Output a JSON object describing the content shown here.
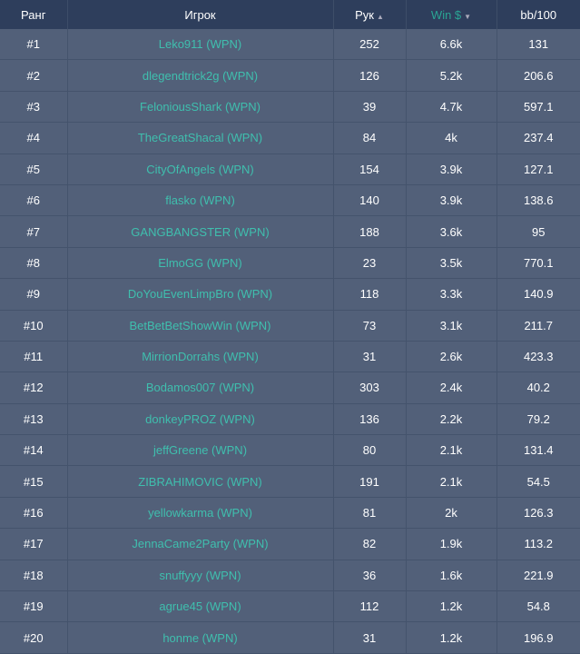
{
  "headers": {
    "rank": "Ранг",
    "player": "Игрок",
    "hands": "Рук",
    "win": "Win $",
    "bb": "bb/100"
  },
  "sort_icons": {
    "hands": "▲",
    "win": "▼"
  },
  "colors": {
    "header_bg": "#2e3e5c",
    "row_bg": "#526079",
    "player_link": "#3fbfae",
    "sorted_header": "#2aa594"
  },
  "rows": [
    {
      "rank": "#1",
      "player": "Leko911 (WPN)",
      "hands": "252",
      "win": "6.6k",
      "bb": "131"
    },
    {
      "rank": "#2",
      "player": "dlegendtrick2g (WPN)",
      "hands": "126",
      "win": "5.2k",
      "bb": "206.6"
    },
    {
      "rank": "#3",
      "player": "FeloniousShark (WPN)",
      "hands": "39",
      "win": "4.7k",
      "bb": "597.1"
    },
    {
      "rank": "#4",
      "player": "TheGreatShacal (WPN)",
      "hands": "84",
      "win": "4k",
      "bb": "237.4"
    },
    {
      "rank": "#5",
      "player": "CityOfAngels (WPN)",
      "hands": "154",
      "win": "3.9k",
      "bb": "127.1"
    },
    {
      "rank": "#6",
      "player": "flasko (WPN)",
      "hands": "140",
      "win": "3.9k",
      "bb": "138.6"
    },
    {
      "rank": "#7",
      "player": "GANGBANGSTER (WPN)",
      "hands": "188",
      "win": "3.6k",
      "bb": "95"
    },
    {
      "rank": "#8",
      "player": "ElmoGG (WPN)",
      "hands": "23",
      "win": "3.5k",
      "bb": "770.1"
    },
    {
      "rank": "#9",
      "player": "DoYouEvenLimpBro (WPN)",
      "hands": "118",
      "win": "3.3k",
      "bb": "140.9"
    },
    {
      "rank": "#10",
      "player": "BetBetBetShowWin (WPN)",
      "hands": "73",
      "win": "3.1k",
      "bb": "211.7"
    },
    {
      "rank": "#11",
      "player": "MirrionDorrahs (WPN)",
      "hands": "31",
      "win": "2.6k",
      "bb": "423.3"
    },
    {
      "rank": "#12",
      "player": "Bodamos007 (WPN)",
      "hands": "303",
      "win": "2.4k",
      "bb": "40.2"
    },
    {
      "rank": "#13",
      "player": "donkeyPROZ (WPN)",
      "hands": "136",
      "win": "2.2k",
      "bb": "79.2"
    },
    {
      "rank": "#14",
      "player": "jeffGreene (WPN)",
      "hands": "80",
      "win": "2.1k",
      "bb": "131.4"
    },
    {
      "rank": "#15",
      "player": "ZIBRAHIMOVIC (WPN)",
      "hands": "191",
      "win": "2.1k",
      "bb": "54.5"
    },
    {
      "rank": "#16",
      "player": "yellowkarma (WPN)",
      "hands": "81",
      "win": "2k",
      "bb": "126.3"
    },
    {
      "rank": "#17",
      "player": "JennaCame2Party (WPN)",
      "hands": "82",
      "win": "1.9k",
      "bb": "113.2"
    },
    {
      "rank": "#18",
      "player": "snuffyyy (WPN)",
      "hands": "36",
      "win": "1.6k",
      "bb": "221.9"
    },
    {
      "rank": "#19",
      "player": "agrue45 (WPN)",
      "hands": "112",
      "win": "1.2k",
      "bb": "54.8"
    },
    {
      "rank": "#20",
      "player": "honme (WPN)",
      "hands": "31",
      "win": "1.2k",
      "bb": "196.9"
    }
  ]
}
